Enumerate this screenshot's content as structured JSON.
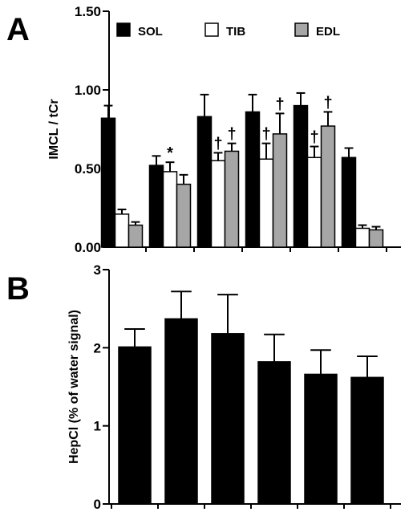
{
  "panels": {
    "a_letter": "A",
    "b_letter": "B"
  },
  "chart_data": [
    {
      "panel": "A",
      "type": "bar",
      "ylabel": "IMCL / tCr",
      "ylim": [
        0,
        1.5
      ],
      "yticks": [
        "0.00",
        "0.50",
        "1.00",
        "1.50"
      ],
      "yticks_values": [
        0,
        0.5,
        1.0,
        1.5
      ],
      "categories": [
        "",
        "",
        "",
        "",
        "",
        ""
      ],
      "legend_position": "top",
      "series": [
        {
          "name": "SOL",
          "color": "#000000",
          "values": [
            0.82,
            0.52,
            0.83,
            0.86,
            0.9,
            0.57
          ],
          "errors": [
            0.08,
            0.06,
            0.14,
            0.11,
            0.08,
            0.06
          ]
        },
        {
          "name": "TIB",
          "color": "#ffffff",
          "values": [
            0.21,
            0.48,
            0.55,
            0.56,
            0.57,
            0.12
          ],
          "errors": [
            0.03,
            0.06,
            0.05,
            0.1,
            0.07,
            0.02
          ]
        },
        {
          "name": "EDL",
          "color": "#a6a6a6",
          "values": [
            0.14,
            0.4,
            0.61,
            0.72,
            0.77,
            0.11
          ],
          "errors": [
            0.02,
            0.06,
            0.05,
            0.13,
            0.09,
            0.02
          ]
        }
      ],
      "annotations": [
        {
          "text": "*",
          "category": 1,
          "series": 1
        },
        {
          "text": "†",
          "category": 2,
          "series": 1
        },
        {
          "text": "†",
          "category": 2,
          "series": 2
        },
        {
          "text": "†",
          "category": 3,
          "series": 1
        },
        {
          "text": "†",
          "category": 3,
          "series": 2
        },
        {
          "text": "†",
          "category": 4,
          "series": 1
        },
        {
          "text": "†",
          "category": 4,
          "series": 2
        }
      ]
    },
    {
      "panel": "B",
      "type": "bar",
      "ylabel": "HepCl (% of water signal)",
      "ylim": [
        0,
        3
      ],
      "yticks": [
        "0",
        "1",
        "2",
        "3"
      ],
      "yticks_values": [
        0,
        1,
        2,
        3
      ],
      "categories": [
        "",
        "",
        "",
        "",
        "",
        ""
      ],
      "series": [
        {
          "color": "#000000",
          "values": [
            2.01,
            2.37,
            2.18,
            1.82,
            1.66,
            1.62
          ],
          "errors": [
            0.23,
            0.35,
            0.5,
            0.35,
            0.31,
            0.27
          ]
        }
      ]
    }
  ]
}
